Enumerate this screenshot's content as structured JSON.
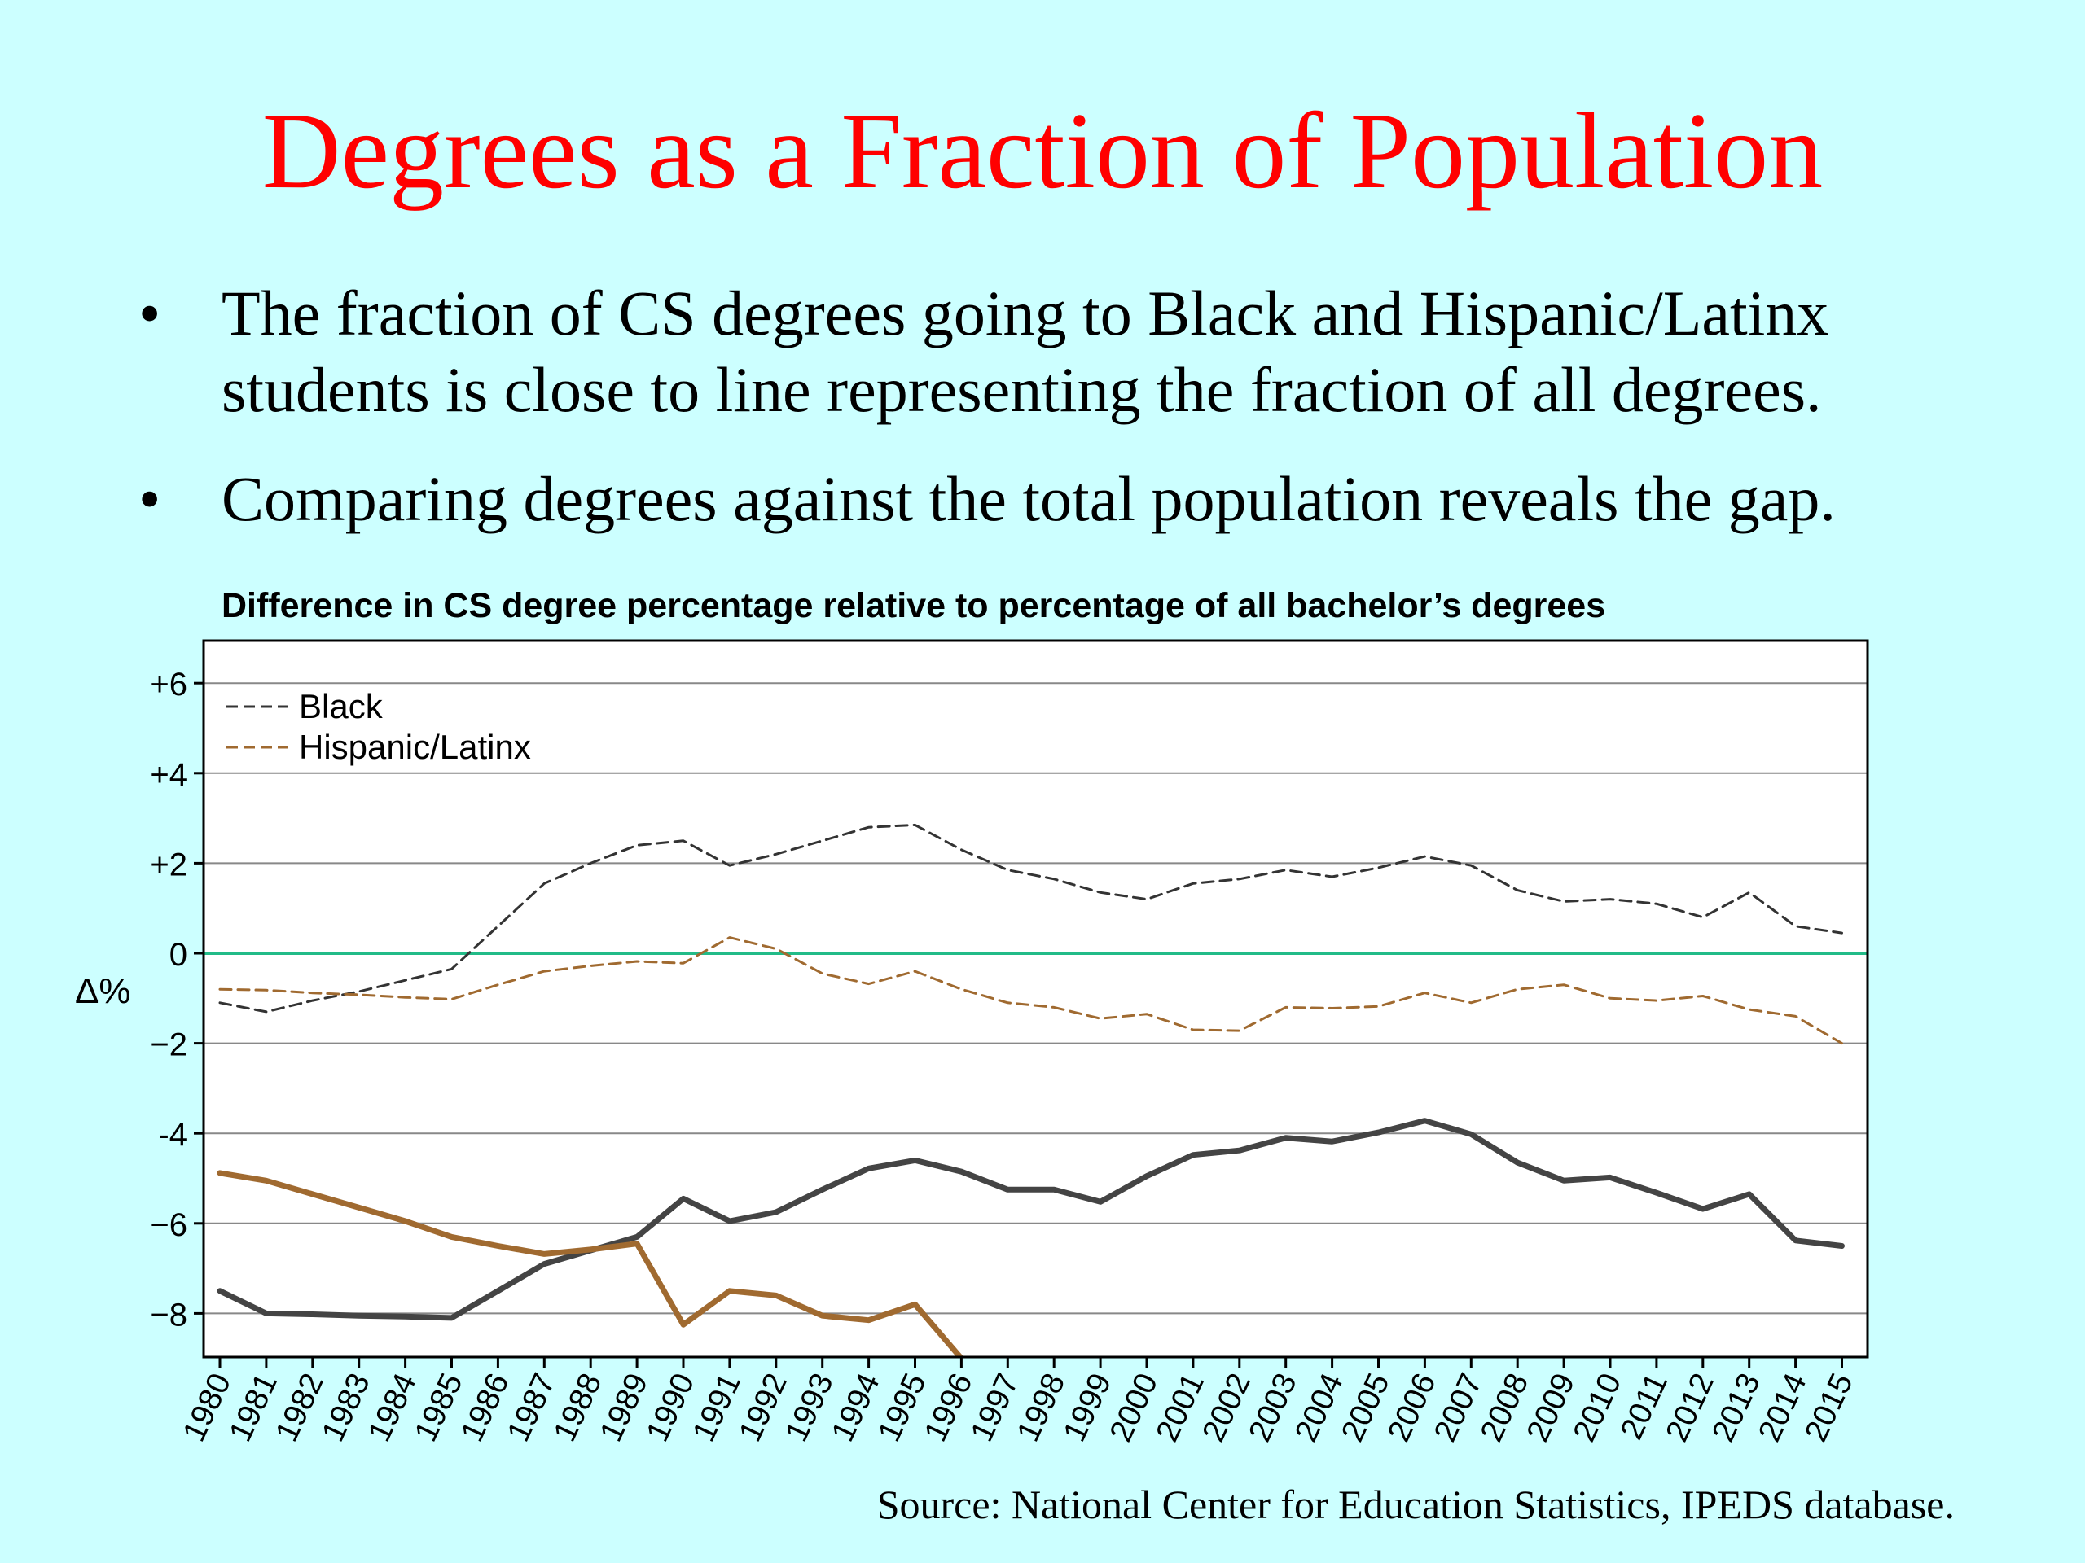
{
  "slide": {
    "title": "Degrees as a Fraction of Population",
    "bullets": [
      "The fraction of CS degrees going to Black and Hispanic/Latinx students is close to line representing the fraction of all degrees.",
      "Comparing degrees against the total population reveals the gap."
    ],
    "bullet_symbol": "•",
    "source": "Source:  National Center for Education Statistics, IPEDS database."
  },
  "chart_data": {
    "type": "line",
    "title": "Difference in CS degree percentage relative to percentage of all bachelor’s degrees",
    "ylabel": "Δ%",
    "xlabel": "",
    "ylim": [
      -9,
      7
    ],
    "yticks": [
      6,
      4,
      2,
      0,
      -2,
      -4,
      -6,
      -8
    ],
    "ytick_labels": [
      "+6",
      "+4",
      "+2",
      "0",
      "−2",
      "-4",
      "−6",
      "−8"
    ],
    "grid": true,
    "legend_position": "top-left",
    "zero_line_color": "#22bb88",
    "x": [
      "1980",
      "1981",
      "1982",
      "1983",
      "1984",
      "1985",
      "1986",
      "1987",
      "1988",
      "1989",
      "1990",
      "1991",
      "1992",
      "1993",
      "1994",
      "1995",
      "1996",
      "1997",
      "1998",
      "1999",
      "2000",
      "2001",
      "2002",
      "2003",
      "2004",
      "2005",
      "2006",
      "2007",
      "2008",
      "2009",
      "2010",
      "2011",
      "2012",
      "2013",
      "2014",
      "2015"
    ],
    "series": [
      {
        "name": "Black",
        "style": "dashed",
        "color": "#333333",
        "in_legend": true,
        "values": [
          -1.1,
          -1.3,
          -1.05,
          -0.85,
          -0.6,
          -0.35,
          0.6,
          1.55,
          2.0,
          2.4,
          2.5,
          1.95,
          2.2,
          2.5,
          2.8,
          2.85,
          2.3,
          1.85,
          1.65,
          1.35,
          1.2,
          1.55,
          1.65,
          1.85,
          1.7,
          1.9,
          2.15,
          1.95,
          1.4,
          1.15,
          1.2,
          1.1,
          0.8,
          1.35,
          0.6,
          0.45
        ]
      },
      {
        "name": "Hispanic/Latinx",
        "style": "dashed",
        "color": "#a06a30",
        "in_legend": true,
        "values": [
          -0.8,
          -0.82,
          -0.88,
          -0.92,
          -0.98,
          -1.02,
          -0.7,
          -0.4,
          -0.28,
          -0.18,
          -0.22,
          0.35,
          0.1,
          -0.45,
          -0.68,
          -0.4,
          -0.8,
          -1.1,
          -1.2,
          -1.45,
          -1.35,
          -1.7,
          -1.72,
          -1.2,
          -1.22,
          -1.18,
          -0.88,
          -1.1,
          -0.8,
          -0.7,
          -1.0,
          -1.05,
          -0.95,
          -1.25,
          -1.4,
          -2.0
        ]
      },
      {
        "style": "solid",
        "color": "#444444",
        "in_legend": false,
        "values": [
          -7.5,
          -8.0,
          -8.02,
          -8.05,
          -8.07,
          -8.1,
          -7.5,
          -6.9,
          -6.6,
          -6.3,
          -5.45,
          -5.95,
          -5.75,
          -5.25,
          -4.78,
          -4.6,
          -4.85,
          -5.25,
          -5.25,
          -5.52,
          -4.95,
          -4.48,
          -4.38,
          -4.1,
          -4.18,
          -3.98,
          -3.72,
          -4.02,
          -4.65,
          -5.05,
          -4.98,
          -5.32,
          -5.68,
          -5.35,
          -6.38,
          -6.5
        ]
      },
      {
        "style": "solid",
        "color": "#a06a30",
        "in_legend": false,
        "values": [
          -4.88,
          -5.05,
          -5.35,
          -5.65,
          -5.95,
          -6.3,
          -6.5,
          -6.68,
          -6.58,
          -6.45,
          -8.25,
          -7.5,
          -7.6,
          -8.05,
          -8.15,
          -7.8,
          -9.0,
          -9.3,
          null,
          null,
          null,
          null,
          null,
          null,
          null,
          null,
          null,
          null,
          null,
          null,
          null,
          null,
          null,
          null,
          null,
          null
        ]
      }
    ]
  }
}
